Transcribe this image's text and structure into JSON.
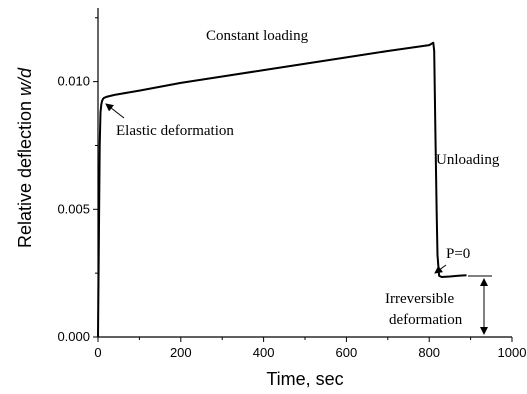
{
  "chart_data": {
    "type": "line",
    "xlabel": "Time, sec",
    "ylabel_main": "Relative deflection ",
    "ylabel_italic": "w/d",
    "xlim": [
      0,
      1000
    ],
    "ylim": [
      0,
      0.013
    ],
    "x_ticks": [
      "0",
      "200",
      "400",
      "600",
      "800",
      "1000"
    ],
    "x_tick_values": [
      0,
      200,
      400,
      600,
      800,
      1000
    ],
    "y_ticks": [
      "0.000",
      "0.005",
      "0.010"
    ],
    "y_tick_values": [
      0,
      0.005,
      0.01
    ],
    "grid": false,
    "series": [
      {
        "x": [
          0,
          2,
          4,
          6,
          8,
          10,
          12,
          14,
          20,
          40,
          100,
          200,
          300,
          400,
          500,
          600,
          700,
          800,
          810,
          812,
          815,
          818,
          820,
          824,
          830,
          850,
          870,
          890
        ],
        "y": [
          0,
          0.0035,
          0.0075,
          0.0088,
          0.0091,
          0.00925,
          0.00932,
          0.00936,
          0.0094,
          0.00948,
          0.00965,
          0.00995,
          0.0102,
          0.01045,
          0.0107,
          0.01095,
          0.0112,
          0.01143,
          0.01152,
          0.0112,
          0.008,
          0.0048,
          0.0032,
          0.0024,
          0.00235,
          0.00237,
          0.0024,
          0.00242
        ]
      }
    ],
    "annotations": {
      "constant_loading": "Constant loading",
      "elastic": "Elastic deformation",
      "unloading": "Unloading",
      "p0": "P=0",
      "irreversible_1": "Irreversible",
      "irreversible_2": "deformation"
    }
  }
}
